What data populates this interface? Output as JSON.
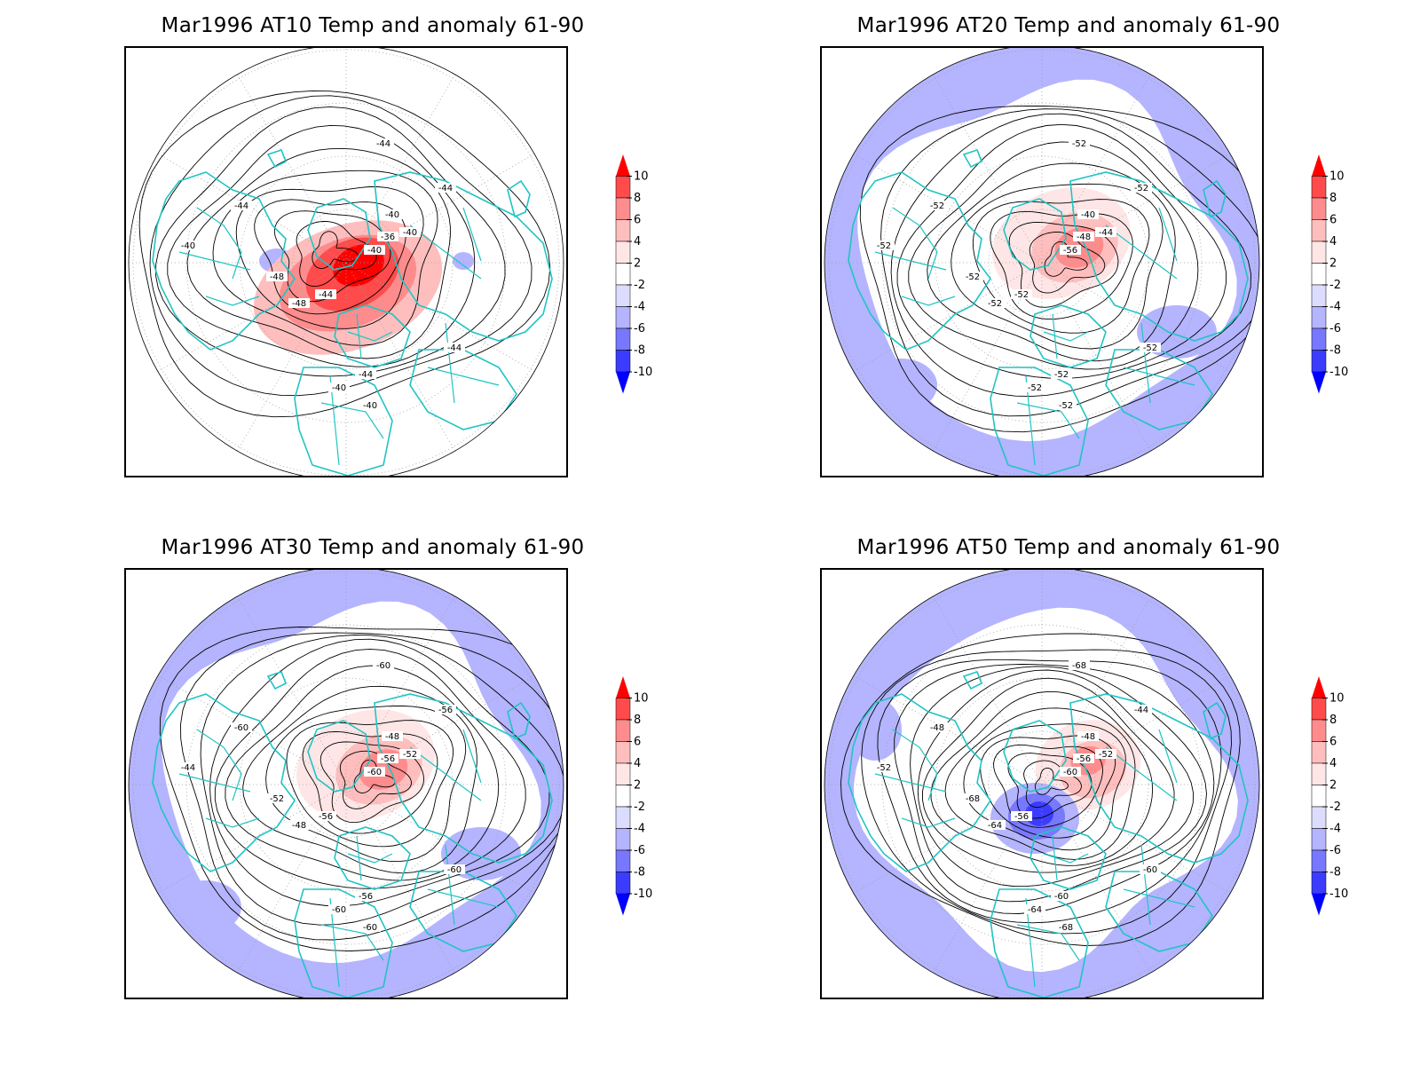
{
  "panels": [
    {
      "title": "Mar1996 AT10 Temp and anomaly 61-90",
      "level": "AT10",
      "contour_labels": [
        "-44",
        "-44",
        "-44",
        "-40",
        "-40",
        "-40",
        "-36",
        "-40",
        "-48",
        "-48",
        "-44",
        "-44",
        "-44",
        "-40",
        "-40"
      ],
      "anomaly_pattern": "strong-warm-center"
    },
    {
      "title": "Mar1996 AT20 Temp and anomaly 61-90",
      "level": "AT20",
      "contour_labels": [
        "-52",
        "-52",
        "-52",
        "-52",
        "-40",
        "-44",
        "-48",
        "-56",
        "-52",
        "-52",
        "-52",
        "-52",
        "-52",
        "-52",
        "-52"
      ],
      "anomaly_pattern": "warm-center-cool-ring"
    },
    {
      "title": "Mar1996 AT30 Temp and anomaly 61-90",
      "level": "AT30",
      "contour_labels": [
        "-60",
        "-56",
        "-60",
        "-44",
        "-48",
        "-52",
        "-56",
        "-60",
        "-48",
        "-52",
        "-56",
        "-60",
        "-56",
        "-60",
        "-60"
      ],
      "anomaly_pattern": "warm-center-cool-ring"
    },
    {
      "title": "Mar1996 AT50 Temp and anomaly 61-90",
      "level": "AT50",
      "contour_labels": [
        "-68",
        "-44",
        "-48",
        "-52",
        "-48",
        "-52",
        "-56",
        "-60",
        "-64",
        "-68",
        "-56",
        "-60",
        "-60",
        "-64",
        "-68"
      ],
      "anomaly_pattern": "warm-cold-dipole"
    }
  ],
  "colorbar": {
    "ticks": [
      "10",
      "8",
      "6",
      "4",
      "2",
      "-2",
      "-4",
      "-6",
      "-8",
      "-10"
    ],
    "colors": [
      "#ff0000",
      "#ff4b4b",
      "#ff8c8c",
      "#ffbebe",
      "#ffe6e6",
      "#ffffff",
      "#dcdcff",
      "#b4b4ff",
      "#7878ff",
      "#3c3cff",
      "#0000ff"
    ]
  },
  "colors": {
    "coastline": "#20c4c4",
    "contour": "#000000",
    "grid": "#a0a0a0"
  }
}
